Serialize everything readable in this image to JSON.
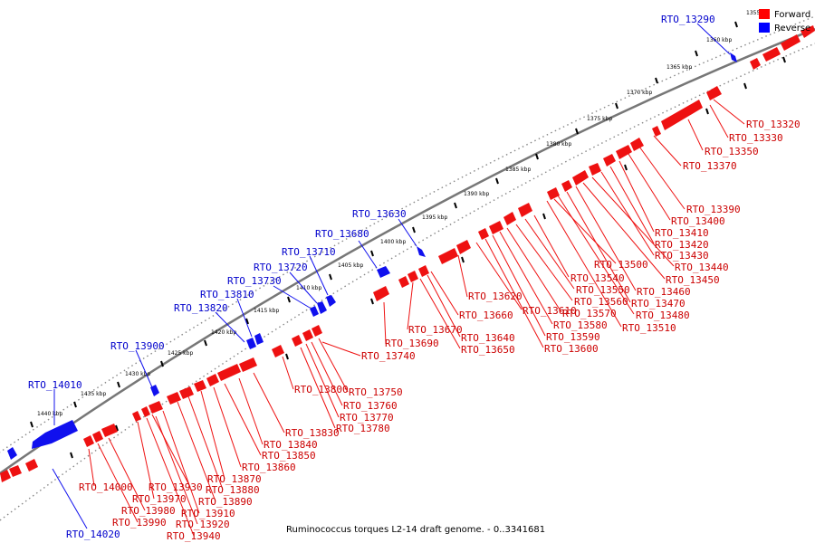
{
  "caption": "Ruminococcus torques L2-14 draft genome. - 0..3341681",
  "legend": {
    "forward_label": "Forward",
    "reverse_label": "Reverse",
    "forward_color": "#ff0000",
    "reverse_color": "#0000ff"
  },
  "colors": {
    "forward": "#ee1111",
    "reverse": "#1010ee",
    "backbone": "#777777"
  },
  "ticks": [
    "1355",
    "1360 kbp",
    "1365 kbp",
    "1370 kbp",
    "1375 kbp",
    "1380 kbp",
    "1385 kbp",
    "1390 kbp",
    "1395 kbp",
    "1400 kbp",
    "1405 kbp",
    "1410 kbp",
    "1415 kbp",
    "1420 kbp",
    "1425 kbp",
    "1430 kbp",
    "1435 kbp",
    "1440 kbp"
  ],
  "reverse_labels": [
    "RTO_13290",
    "RTO_13630",
    "RTO_13680",
    "RTO_13710",
    "RTO_13720",
    "RTO_13730",
    "RTO_13810",
    "RTO_13820",
    "RTO_13900",
    "RTO_14010",
    "RTO_14020"
  ],
  "forward_labels": [
    "RTO_13320",
    "RTO_13330",
    "RTO_13350",
    "RTO_13370",
    "RTO_13390",
    "RTO_13400",
    "RTO_13410",
    "RTO_13420",
    "RTO_13430",
    "RTO_13440",
    "RTO_13450",
    "RTO_13460",
    "RTO_13470",
    "RTO_13480",
    "RTO_13500",
    "RTO_13510",
    "RTO_13540",
    "RTO_13550",
    "RTO_13560",
    "RTO_13570",
    "RTO_13580",
    "RTO_13590",
    "RTO_13600",
    "RTO_13610",
    "RTO_13620",
    "RTO_13640",
    "RTO_13650",
    "RTO_13660",
    "RTO_13670",
    "RTO_13690",
    "RTO_13740",
    "RTO_13750",
    "RTO_13760",
    "RTO_13770",
    "RTO_13780",
    "RTO_13800",
    "RTO_13830",
    "RTO_13840",
    "RTO_13850",
    "RTO_13860",
    "RTO_13870",
    "RTO_13880",
    "RTO_13890",
    "RTO_13910",
    "RTO_13920",
    "RTO_13930",
    "RTO_13940",
    "RTO_13970",
    "RTO_13980",
    "RTO_13990",
    "RTO_14000"
  ]
}
